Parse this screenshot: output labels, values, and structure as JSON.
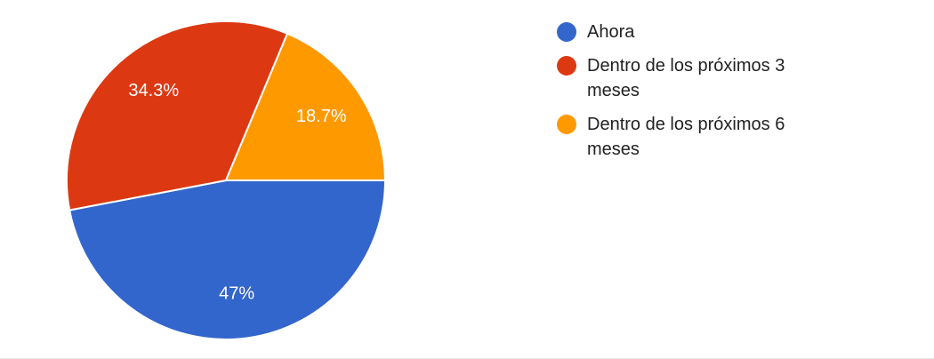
{
  "chart_data": {
    "type": "pie",
    "categories": [
      "Ahora",
      "Dentro de los próximos 3 meses",
      "Dentro de los próximos 6 meses"
    ],
    "series": [
      {
        "values": [
          47,
          34.3,
          18.7
        ],
        "value_labels": [
          "47%",
          "34.3%",
          "18.7%"
        ],
        "colors": [
          "#3366cc",
          "#dc3912",
          "#ff9900"
        ]
      }
    ],
    "legend": "right"
  }
}
